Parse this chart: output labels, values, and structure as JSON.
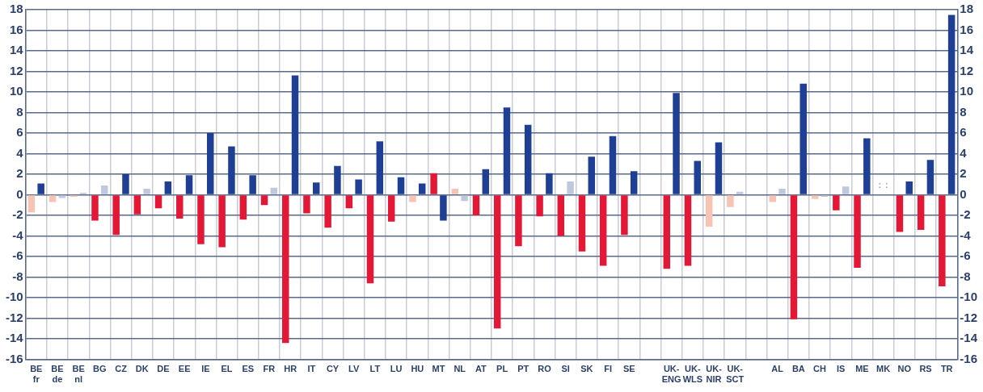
{
  "chart_data": {
    "type": "bar",
    "categories": [
      "BE\nfr",
      "BE\nde",
      "BE\nnl",
      "BG",
      "CZ",
      "DK",
      "DE",
      "EE",
      "IE",
      "EL",
      "ES",
      "FR",
      "HR",
      "IT",
      "CY",
      "LV",
      "LT",
      "LU",
      "HU",
      "MT",
      "NL",
      "AT",
      "PL",
      "PT",
      "RO",
      "SI",
      "SK",
      "FI",
      "SE",
      null,
      "UK-\nENG",
      "UK-\nWLS",
      "UK-\nNIR",
      "UK-\nSCT",
      null,
      "AL",
      "BA",
      "CH",
      "IS",
      "ME",
      "MK",
      "NO",
      "RS",
      "TR"
    ],
    "series": [
      {
        "values": [
          -1.7,
          -0.7,
          -0.2,
          -2.5,
          -3.9,
          -1.9,
          -1.3,
          -2.3,
          -4.8,
          -5.1,
          -2.4,
          -1.0,
          -14.4,
          -1.8,
          -3.2,
          -1.3,
          -8.6,
          -2.6,
          -0.7,
          2.1,
          0.6,
          -2.0,
          -13.0,
          -5.0,
          -2.1,
          -4.0,
          -5.5,
          -6.9,
          -3.9,
          null,
          -7.2,
          -6.9,
          -3.1,
          -1.2,
          null,
          -0.7,
          -12.1,
          -0.4,
          -1.5,
          -7.1,
          null,
          -3.6,
          -3.4,
          -8.9
        ],
        "colors": [
          "#f7c4b4",
          "#f7c4b4",
          "#f7c4b4",
          "#e31837",
          "#e31837",
          "#e31837",
          "#e31837",
          "#e31837",
          "#e31837",
          "#e31837",
          "#e31837",
          "#e31837",
          "#e31837",
          "#e31837",
          "#e31837",
          "#e31837",
          "#e31837",
          "#e31837",
          "#f7c4b4",
          "#e31837",
          "#f7c4b4",
          "#e31837",
          "#e31837",
          "#e31837",
          "#e31837",
          "#e31837",
          "#e31837",
          "#e31837",
          "#e31837",
          null,
          "#e31837",
          "#e31837",
          "#f7c4b4",
          "#f7c4b4",
          null,
          "#f7c4b4",
          "#e31837",
          "#f7c4b4",
          "#e31837",
          "#e31837",
          null,
          "#e31837",
          "#e31837",
          "#e31837"
        ],
        "value_labels": [
          null,
          null,
          null,
          null,
          null,
          null,
          null,
          null,
          null,
          null,
          null,
          null,
          null,
          null,
          null,
          null,
          null,
          null,
          null,
          null,
          null,
          null,
          null,
          null,
          null,
          null,
          null,
          null,
          null,
          null,
          null,
          null,
          null,
          null,
          null,
          null,
          null,
          null,
          null,
          null,
          ":",
          null,
          null,
          null
        ]
      },
      {
        "values": [
          1.1,
          -0.3,
          0.2,
          0.9,
          2.0,
          0.6,
          1.3,
          1.9,
          6.0,
          4.7,
          1.9,
          0.7,
          11.6,
          1.2,
          2.8,
          1.5,
          5.2,
          1.7,
          1.1,
          -2.5,
          -0.6,
          2.5,
          8.5,
          6.8,
          2.1,
          1.3,
          3.7,
          5.7,
          2.3,
          null,
          9.9,
          3.3,
          5.1,
          0.3,
          null,
          0.6,
          10.8,
          -0.2,
          0.8,
          5.5,
          null,
          1.3,
          3.4,
          17.5
        ],
        "colors": [
          "#1f3f94",
          "#c0c8e0",
          "#c0c8e0",
          "#c0c8e0",
          "#1f3f94",
          "#c0c8e0",
          "#1f3f94",
          "#1f3f94",
          "#1f3f94",
          "#1f3f94",
          "#1f3f94",
          "#c0c8e0",
          "#1f3f94",
          "#1f3f94",
          "#1f3f94",
          "#1f3f94",
          "#1f3f94",
          "#1f3f94",
          "#1f3f94",
          "#1f3f94",
          "#c0c8e0",
          "#1f3f94",
          "#1f3f94",
          "#1f3f94",
          "#1f3f94",
          "#c0c8e0",
          "#1f3f94",
          "#1f3f94",
          "#1f3f94",
          null,
          "#1f3f94",
          "#1f3f94",
          "#1f3f94",
          "#c0c8e0",
          null,
          "#c0c8e0",
          "#1f3f94",
          "#c0c8e0",
          "#c0c8e0",
          "#1f3f94",
          null,
          "#1f3f94",
          "#1f3f94",
          "#1f3f94"
        ],
        "value_labels": [
          null,
          null,
          null,
          null,
          null,
          null,
          null,
          null,
          null,
          null,
          null,
          null,
          null,
          null,
          null,
          null,
          null,
          null,
          null,
          null,
          null,
          null,
          null,
          null,
          null,
          null,
          null,
          null,
          null,
          null,
          null,
          null,
          null,
          null,
          null,
          null,
          null,
          null,
          null,
          null,
          ":",
          null,
          null,
          null
        ]
      }
    ],
    "ylim": [
      -16,
      18
    ],
    "yticks": [
      -16,
      -14,
      -12,
      -10,
      -8,
      -6,
      -4,
      -2,
      0,
      2,
      4,
      6,
      8,
      10,
      12,
      14,
      16,
      18
    ],
    "y2lim": [
      -16,
      18
    ],
    "y2ticks": [
      -16,
      -14,
      -12,
      -10,
      -8,
      -6,
      -4,
      -2,
      0,
      2,
      4,
      6,
      8,
      10,
      12,
      14,
      16,
      18
    ],
    "grid": true,
    "legend": false
  }
}
